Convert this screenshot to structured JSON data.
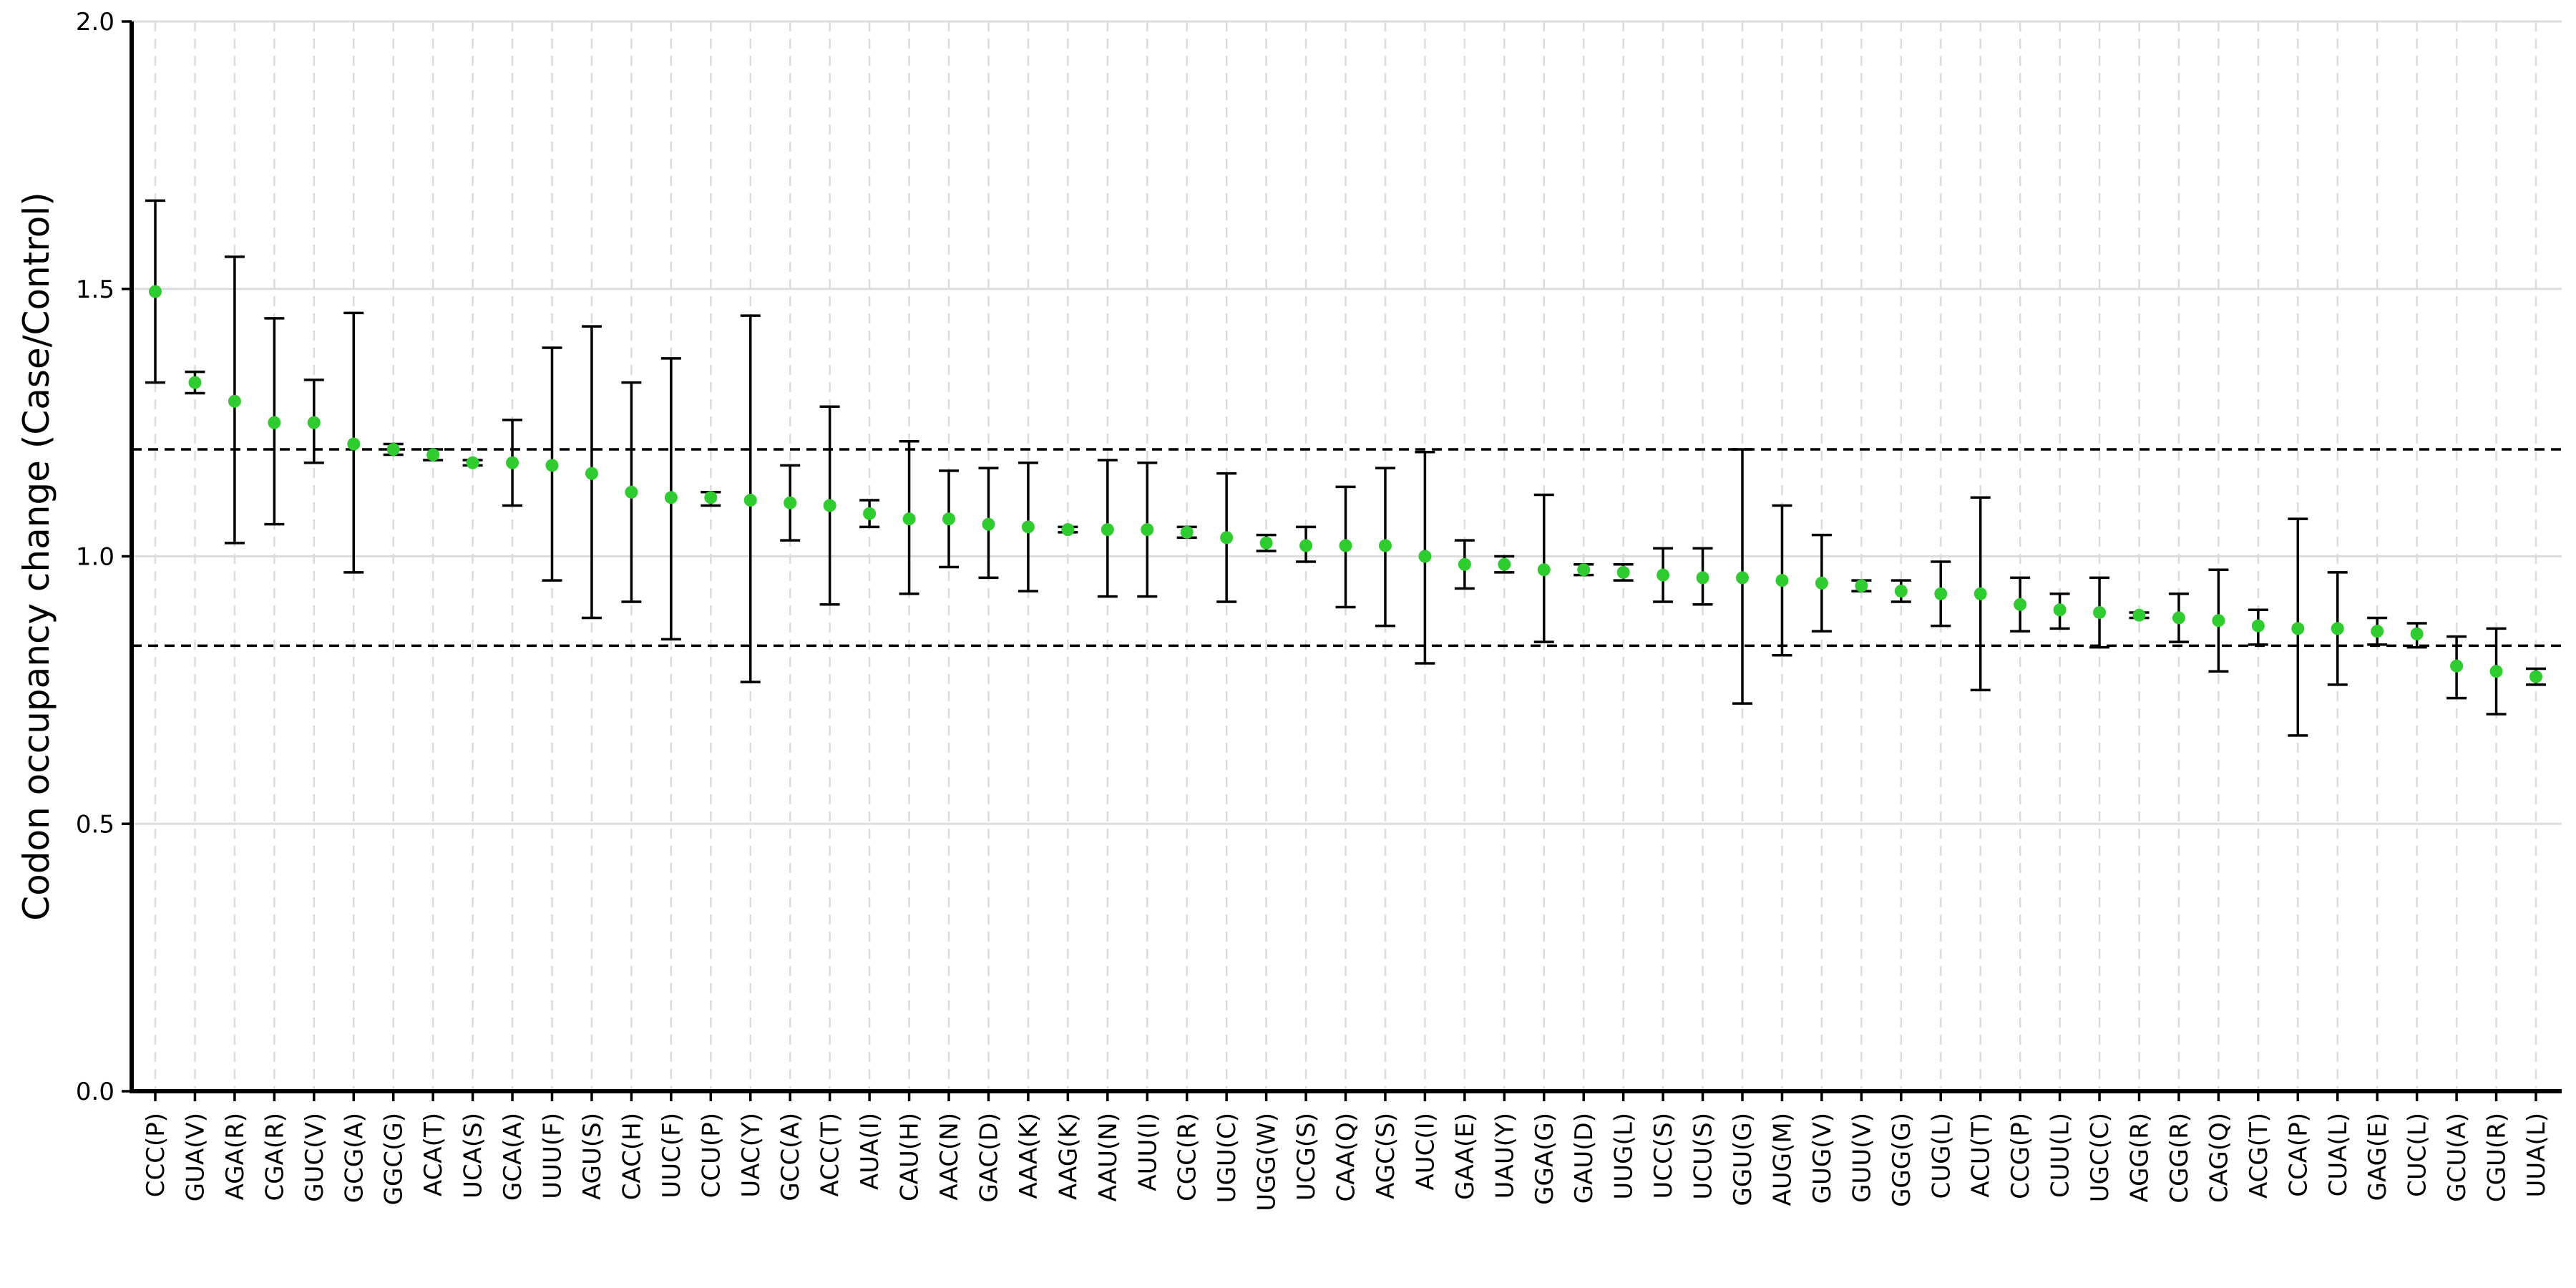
{
  "chart_data": {
    "type": "scatter",
    "title": "",
    "xlabel": "",
    "ylabel": "Codon occupancy change (Case/Control)",
    "ylim": [
      0.0,
      2.0
    ],
    "yticks": [
      "0.0",
      "0.5",
      "1.0",
      "1.5",
      "2.0"
    ],
    "grid": true,
    "threshold_lines": [
      1.2,
      0.833
    ],
    "point_color": "#2ecc2e",
    "errorbar_color": "#000000",
    "categories": [
      "CCC(P)",
      "GUA(V)",
      "AGA(R)",
      "CGA(R)",
      "GUC(V)",
      "GCG(A)",
      "GGC(G)",
      "ACA(T)",
      "UCA(S)",
      "GCA(A)",
      "UUU(F)",
      "AGU(S)",
      "CAC(H)",
      "UUC(F)",
      "CCU(P)",
      "UAC(Y)",
      "GCC(A)",
      "ACC(T)",
      "AUA(I)",
      "CAU(H)",
      "AAC(N)",
      "GAC(D)",
      "AAA(K)",
      "AAG(K)",
      "AAU(N)",
      "AUU(I)",
      "CGC(R)",
      "UGU(C)",
      "UGG(W)",
      "UCG(S)",
      "CAA(Q)",
      "AGC(S)",
      "AUC(I)",
      "GAA(E)",
      "UAU(Y)",
      "GGA(G)",
      "GAU(D)",
      "UUG(L)",
      "UCC(S)",
      "UCU(S)",
      "GGU(G)",
      "AUG(M)",
      "GUG(V)",
      "GUU(V)",
      "GGG(G)",
      "CUG(L)",
      "ACU(T)",
      "CCG(P)",
      "CUU(L)",
      "UGC(C)",
      "AGG(R)",
      "CGG(R)",
      "CAG(Q)",
      "ACG(T)",
      "CCA(P)",
      "CUA(L)",
      "GAG(E)",
      "CUC(L)",
      "GCU(A)",
      "CGU(R)",
      "UUA(L)"
    ],
    "values": [
      1.495,
      1.325,
      1.29,
      1.25,
      1.25,
      1.21,
      1.2,
      1.19,
      1.175,
      1.175,
      1.17,
      1.155,
      1.12,
      1.11,
      1.11,
      1.105,
      1.1,
      1.095,
      1.08,
      1.07,
      1.07,
      1.06,
      1.055,
      1.05,
      1.05,
      1.05,
      1.045,
      1.035,
      1.025,
      1.02,
      1.02,
      1.02,
      1.0,
      0.985,
      0.985,
      0.975,
      0.975,
      0.97,
      0.965,
      0.96,
      0.96,
      0.955,
      0.95,
      0.945,
      0.935,
      0.93,
      0.93,
      0.91,
      0.9,
      0.895,
      0.89,
      0.885,
      0.88,
      0.87,
      0.865,
      0.865,
      0.86,
      0.855,
      0.795,
      0.785,
      0.775
    ],
    "lower": [
      1.325,
      1.305,
      1.025,
      1.06,
      1.175,
      0.97,
      1.19,
      1.18,
      1.17,
      1.095,
      0.955,
      0.885,
      0.915,
      0.845,
      1.095,
      0.765,
      1.03,
      0.91,
      1.055,
      0.93,
      0.98,
      0.96,
      0.935,
      1.045,
      0.925,
      0.925,
      1.035,
      0.915,
      1.01,
      0.99,
      0.905,
      0.87,
      0.8,
      0.94,
      0.97,
      0.84,
      0.965,
      0.955,
      0.915,
      0.91,
      0.725,
      0.815,
      0.86,
      0.935,
      0.915,
      0.87,
      0.75,
      0.86,
      0.865,
      0.83,
      0.885,
      0.84,
      0.785,
      0.835,
      0.665,
      0.76,
      0.835,
      0.83,
      0.735,
      0.705,
      0.76
    ],
    "upper": [
      1.665,
      1.345,
      1.56,
      1.445,
      1.33,
      1.455,
      1.21,
      1.2,
      1.18,
      1.255,
      1.39,
      1.43,
      1.325,
      1.37,
      1.12,
      1.45,
      1.17,
      1.28,
      1.105,
      1.215,
      1.16,
      1.165,
      1.175,
      1.055,
      1.18,
      1.175,
      1.055,
      1.155,
      1.04,
      1.055,
      1.13,
      1.165,
      1.195,
      1.03,
      1.0,
      1.115,
      0.985,
      0.985,
      1.015,
      1.015,
      1.2,
      1.095,
      1.04,
      0.955,
      0.955,
      0.99,
      1.11,
      0.96,
      0.93,
      0.96,
      0.895,
      0.93,
      0.975,
      0.9,
      1.07,
      0.97,
      0.885,
      0.875,
      0.85,
      0.865,
      0.79
    ]
  }
}
